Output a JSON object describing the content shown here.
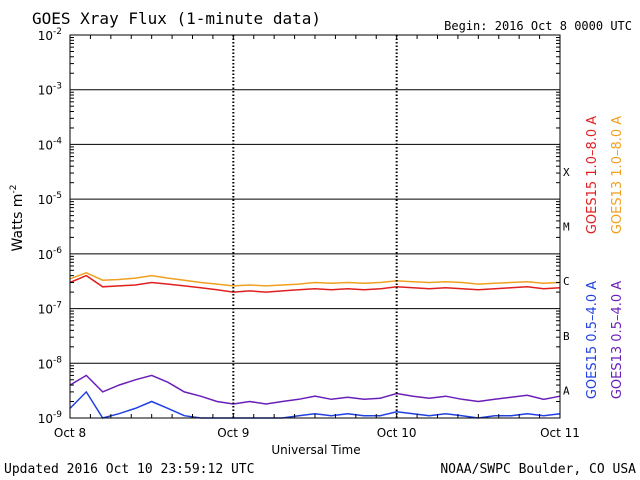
{
  "chart_data": {
    "type": "line",
    "title": "GOES Xray Flux (1-minute data)",
    "begin_label": "Begin:  2016 Oct 8 0000 UTC",
    "xlabel": "Universal Time",
    "ylabel": "Watts m",
    "ylabel_sup": "-2",
    "yscale": "log",
    "ylim": [
      1e-09,
      0.01
    ],
    "xlim_days": [
      0,
      3
    ],
    "x_ticks": [
      {
        "day": 0,
        "label": "Oct 8"
      },
      {
        "day": 1,
        "label": "Oct 9"
      },
      {
        "day": 2,
        "label": "Oct 10"
      },
      {
        "day": 3,
        "label": "Oct 11"
      }
    ],
    "y_ticks": [
      {
        "exp": -2,
        "label": "-2"
      },
      {
        "exp": -3,
        "label": "-3"
      },
      {
        "exp": -4,
        "label": "-4"
      },
      {
        "exp": -5,
        "label": "-5"
      },
      {
        "exp": -6,
        "label": "-6"
      },
      {
        "exp": -7,
        "label": "-7"
      },
      {
        "exp": -8,
        "label": "-8"
      },
      {
        "exp": -9,
        "label": "-9"
      }
    ],
    "flare_classes": [
      {
        "label": "X",
        "exp": -4
      },
      {
        "label": "M",
        "exp": -5
      },
      {
        "label": "C",
        "exp": -6
      },
      {
        "label": "B",
        "exp": -7
      },
      {
        "label": "A",
        "exp": -8
      }
    ],
    "grid": true,
    "legend": "right",
    "series": [
      {
        "name": "GOES15 1.0–8.0 A",
        "color": "#e02020",
        "type": "long",
        "x": [
          0,
          0.1,
          0.2,
          0.3,
          0.4,
          0.5,
          0.6,
          0.7,
          0.8,
          0.9,
          1.0,
          1.1,
          1.2,
          1.3,
          1.4,
          1.5,
          1.6,
          1.7,
          1.8,
          1.9,
          2.0,
          2.1,
          2.2,
          2.3,
          2.4,
          2.5,
          2.6,
          2.7,
          2.8,
          2.9,
          3.0
        ],
        "y": [
          3e-07,
          4e-07,
          2.5e-07,
          2.6e-07,
          2.7e-07,
          3e-07,
          2.8e-07,
          2.6e-07,
          2.4e-07,
          2.2e-07,
          2e-07,
          2.1e-07,
          2e-07,
          2.1e-07,
          2.2e-07,
          2.3e-07,
          2.2e-07,
          2.3e-07,
          2.2e-07,
          2.3e-07,
          2.5e-07,
          2.4e-07,
          2.3e-07,
          2.4e-07,
          2.3e-07,
          2.2e-07,
          2.3e-07,
          2.4e-07,
          2.5e-07,
          2.3e-07,
          2.4e-07
        ]
      },
      {
        "name": "GOES13 1.0–8.0 A",
        "color": "#f0a020",
        "type": "long",
        "x": [
          0,
          0.1,
          0.2,
          0.3,
          0.4,
          0.5,
          0.6,
          0.7,
          0.8,
          0.9,
          1.0,
          1.1,
          1.2,
          1.3,
          1.4,
          1.5,
          1.6,
          1.7,
          1.8,
          1.9,
          2.0,
          2.1,
          2.2,
          2.3,
          2.4,
          2.5,
          2.6,
          2.7,
          2.8,
          2.9,
          3.0
        ],
        "y": [
          3.5e-07,
          4.5e-07,
          3.3e-07,
          3.4e-07,
          3.6e-07,
          4e-07,
          3.6e-07,
          3.3e-07,
          3e-07,
          2.8e-07,
          2.6e-07,
          2.7e-07,
          2.6e-07,
          2.7e-07,
          2.8e-07,
          3e-07,
          2.9e-07,
          3e-07,
          2.9e-07,
          3e-07,
          3.2e-07,
          3.1e-07,
          3e-07,
          3.1e-07,
          3e-07,
          2.8e-07,
          2.9e-07,
          3e-07,
          3.1e-07,
          2.9e-07,
          3e-07
        ]
      },
      {
        "name": "GOES15 0.5–4.0 A",
        "color": "#2040e0",
        "type": "short",
        "x": [
          0,
          0.1,
          0.2,
          0.3,
          0.4,
          0.5,
          0.6,
          0.7,
          0.8,
          0.9,
          1.0,
          1.1,
          1.2,
          1.3,
          1.4,
          1.5,
          1.6,
          1.7,
          1.8,
          1.9,
          2.0,
          2.1,
          2.2,
          2.3,
          2.4,
          2.5,
          2.6,
          2.7,
          2.8,
          2.9,
          3.0
        ],
        "y": [
          1.5e-09,
          3e-09,
          1e-09,
          1.2e-09,
          1.5e-09,
          2e-09,
          1.5e-09,
          1.1e-09,
          1e-09,
          1e-09,
          1e-09,
          1e-09,
          1e-09,
          1e-09,
          1.1e-09,
          1.2e-09,
          1.1e-09,
          1.2e-09,
          1.1e-09,
          1.1e-09,
          1.3e-09,
          1.2e-09,
          1.1e-09,
          1.2e-09,
          1.1e-09,
          1e-09,
          1.1e-09,
          1.1e-09,
          1.2e-09,
          1.1e-09,
          1.2e-09
        ]
      },
      {
        "name": "GOES13 0.5–4.0 A",
        "color": "#6a1fb8",
        "type": "short",
        "x": [
          0,
          0.1,
          0.2,
          0.3,
          0.4,
          0.5,
          0.6,
          0.7,
          0.8,
          0.9,
          1.0,
          1.1,
          1.2,
          1.3,
          1.4,
          1.5,
          1.6,
          1.7,
          1.8,
          1.9,
          2.0,
          2.1,
          2.2,
          2.3,
          2.4,
          2.5,
          2.6,
          2.7,
          2.8,
          2.9,
          3.0
        ],
        "y": [
          4e-09,
          6e-09,
          3e-09,
          4e-09,
          5e-09,
          6e-09,
          4.5e-09,
          3e-09,
          2.5e-09,
          2e-09,
          1.8e-09,
          2e-09,
          1.8e-09,
          2e-09,
          2.2e-09,
          2.5e-09,
          2.2e-09,
          2.4e-09,
          2.2e-09,
          2.3e-09,
          2.8e-09,
          2.5e-09,
          2.3e-09,
          2.5e-09,
          2.2e-09,
          2e-09,
          2.2e-09,
          2.4e-09,
          2.6e-09,
          2.2e-09,
          2.5e-09
        ]
      }
    ]
  },
  "footer": {
    "updated": "Updated 2016 Oct 10 23:59:12 UTC",
    "credit": "NOAA/SWPC Boulder, CO USA"
  }
}
